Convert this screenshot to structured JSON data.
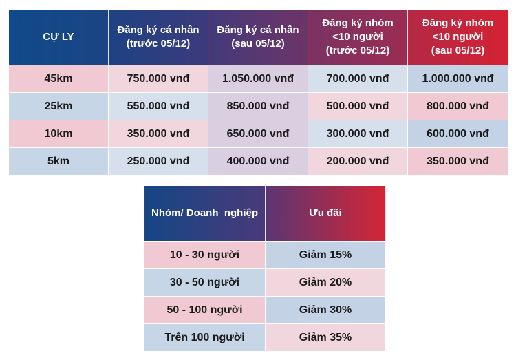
{
  "price_table": {
    "headers": [
      [
        "CỰ LY"
      ],
      [
        "Đăng ký cá nhân",
        "(trước 05/12)"
      ],
      [
        "Đăng ký cá nhân",
        "(sau 05/12)"
      ],
      [
        "Đăng ký nhóm",
        "<10 người",
        "(trước 05/12)"
      ],
      [
        "Đăng ký nhóm",
        "<10 người",
        "(sau 05/12)"
      ]
    ],
    "rows": [
      [
        "45km",
        "750.000 vnđ",
        "1.050.000 vnđ",
        "700.000 vnđ",
        "1.000.000 vnđ"
      ],
      [
        "25km",
        "550.000 vnđ",
        "850.000 vnđ",
        "500.000 vnđ",
        "800.000 vnđ"
      ],
      [
        "10km",
        "350.000 vnđ",
        "650.000 vnđ",
        "300.000 vnđ",
        "600.000 vnđ"
      ],
      [
        "5km",
        "250.000 vnđ",
        "400.000 vnđ",
        "200.000 vnđ",
        "350.000 vnđ"
      ]
    ]
  },
  "discount_table": {
    "headers": [
      "Nhóm/ Doanh  nghiệp",
      "Ưu đãi"
    ],
    "rows": [
      [
        "10 - 30 người",
        "Giảm 15%"
      ],
      [
        "30 - 50 người",
        "Giảm 20%"
      ],
      [
        "50 - 100 người",
        "Giảm 30%"
      ],
      [
        "Trên 100 người",
        "Giảm 35%"
      ]
    ]
  }
}
